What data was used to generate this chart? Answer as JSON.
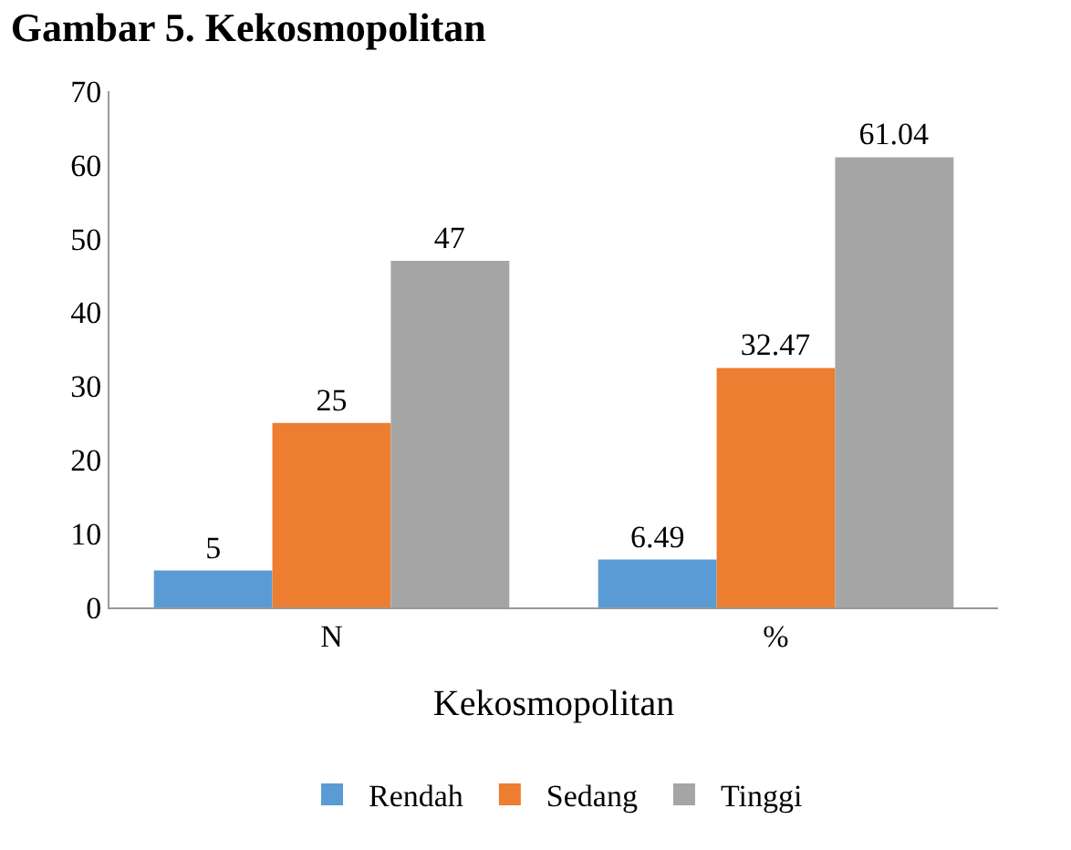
{
  "chart_data": {
    "type": "bar",
    "title": "Gambar 5. Kekosmopolitan",
    "xlabel": "Kekosmopolitan",
    "categories": [
      "N",
      "%"
    ],
    "series": [
      {
        "name": "Rendah",
        "color": "#5b9bd5",
        "values": [
          5,
          6.49
        ]
      },
      {
        "name": "Sedang",
        "color": "#ed7d31",
        "values": [
          25,
          32.47
        ]
      },
      {
        "name": "Tinggi",
        "color": "#a5a5a5",
        "values": [
          47,
          61.04
        ]
      }
    ],
    "ylim": [
      0,
      70
    ],
    "yticks": [
      0,
      10,
      20,
      30,
      40,
      50,
      60,
      70
    ],
    "data_labels": true,
    "legend": "bottom",
    "grid": false
  }
}
